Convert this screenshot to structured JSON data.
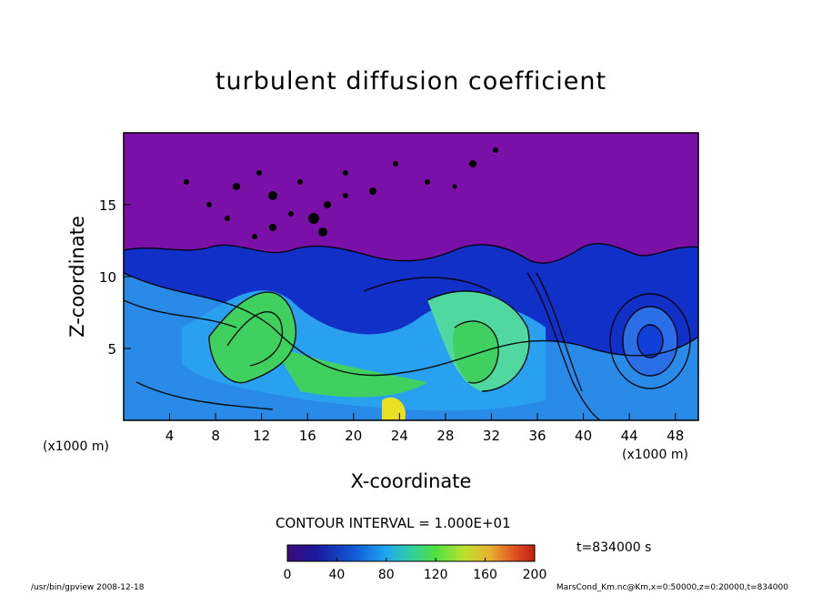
{
  "header": {
    "footer_program": "/usr/bin/gpview   2008-12-18",
    "footer_source": "MarsCond_Km.nc@Km,x=0:50000,z=0:20000,t=834000"
  },
  "annotations": {
    "contour_interval": "CONTOUR INTERVAL = 1.000E+01",
    "time": "t=834000 s",
    "x_unit": "(x1000 m)"
  },
  "colors": {
    "background": "#ffffff",
    "top_layer": "#7a10a8",
    "low": "#1030c8",
    "mid": "#2aa0f0",
    "high": "#40d060",
    "peak": "#e8e020",
    "contour_line": "#000000"
  },
  "chart_data": {
    "type": "heatmap",
    "title": "turbulent diffusion coefficient",
    "xlabel": "X-coordinate",
    "ylabel": "Z-coordinate",
    "xlim": [
      0,
      50
    ],
    "ylim": [
      0,
      20
    ],
    "x_ticks": [
      "4",
      "8",
      "12",
      "16",
      "20",
      "24",
      "28",
      "32",
      "36",
      "40",
      "44",
      "48"
    ],
    "y_ticks": [
      "5",
      "10",
      "15"
    ],
    "x_unit": "(x1000 m)",
    "colorbar": {
      "min": 0,
      "max": 200,
      "ticks": [
        "0",
        "40",
        "80",
        "120",
        "160",
        "200"
      ]
    },
    "contour_interval": 10,
    "time": "t=834000 s"
  }
}
